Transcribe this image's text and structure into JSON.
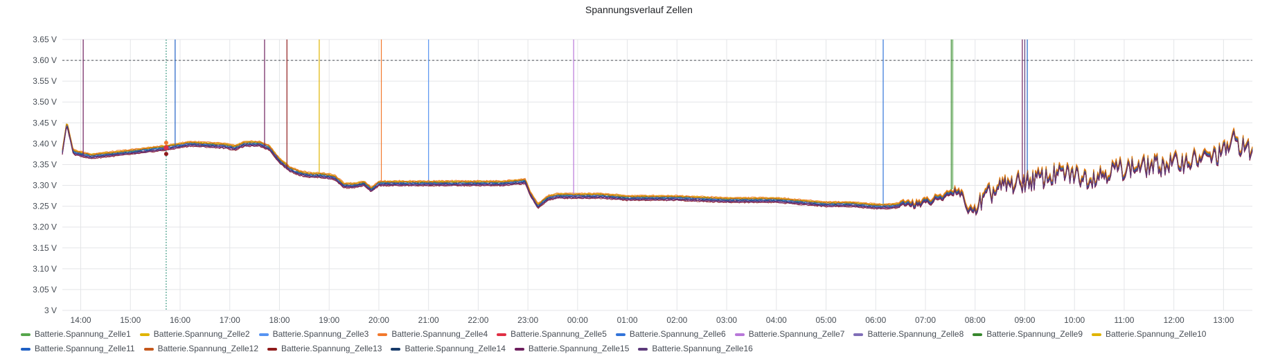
{
  "chart_data": {
    "type": "line",
    "title": "Spannungsverlauf Zellen",
    "unit": "V",
    "ylim": [
      3.0,
      3.65
    ],
    "y_ticks": [
      "3 V",
      "3.05 V",
      "3.10 V",
      "3.15 V",
      "3.20 V",
      "3.25 V",
      "3.30 V",
      "3.35 V",
      "3.40 V",
      "3.45 V",
      "3.50 V",
      "3.55 V",
      "3.60 V",
      "3.65 V"
    ],
    "y_tick_values": [
      3.0,
      3.05,
      3.1,
      3.15,
      3.2,
      3.25,
      3.3,
      3.35,
      3.4,
      3.45,
      3.5,
      3.55,
      3.6,
      3.65
    ],
    "x_range_hours": [
      13.63,
      37.58
    ],
    "x_ticks": [
      "14:00",
      "15:00",
      "16:00",
      "17:00",
      "18:00",
      "19:00",
      "20:00",
      "21:00",
      "22:00",
      "23:00",
      "00:00",
      "01:00",
      "02:00",
      "03:00",
      "04:00",
      "05:00",
      "06:00",
      "07:00",
      "08:00",
      "09:00",
      "10:00",
      "11:00",
      "12:00",
      "13:00"
    ],
    "x_tick_values": [
      14,
      15,
      16,
      17,
      18,
      19,
      20,
      21,
      22,
      23,
      24,
      25,
      26,
      27,
      28,
      29,
      30,
      31,
      32,
      33,
      34,
      35,
      36,
      37
    ],
    "threshold": {
      "value": 3.6,
      "color": "#4a4f56",
      "style": "dashed"
    },
    "crosshair_x": 15.72,
    "grid": true,
    "legend_position": "bottom",
    "average_profile": {
      "x": [
        13.63,
        13.72,
        13.85,
        14.2,
        15.0,
        15.7,
        16.2,
        16.9,
        17.1,
        17.3,
        17.6,
        17.8,
        18.0,
        18.2,
        18.4,
        18.6,
        18.8,
        19.1,
        19.3,
        19.5,
        19.7,
        19.85,
        20.0,
        20.5,
        21.0,
        21.5,
        22.0,
        22.5,
        22.95,
        23.05,
        23.2,
        23.4,
        23.6,
        24.0,
        24.5,
        25.0,
        26.0,
        27.0,
        28.0,
        28.5,
        29.0,
        29.5,
        30.0,
        30.3,
        30.6,
        31.0,
        31.3,
        31.6,
        31.75,
        31.85,
        32.0,
        32.3,
        32.6,
        33.0,
        33.4,
        33.8,
        34.3,
        34.8,
        35.3,
        35.8,
        36.3,
        36.8,
        37.0,
        37.2,
        37.45,
        37.58
      ],
      "y": [
        3.38,
        3.45,
        3.38,
        3.37,
        3.38,
        3.39,
        3.4,
        3.395,
        3.39,
        3.4,
        3.4,
        3.39,
        3.36,
        3.34,
        3.33,
        3.325,
        3.325,
        3.32,
        3.3,
        3.3,
        3.305,
        3.29,
        3.305,
        3.305,
        3.305,
        3.305,
        3.305,
        3.305,
        3.31,
        3.28,
        3.25,
        3.27,
        3.275,
        3.275,
        3.275,
        3.27,
        3.27,
        3.265,
        3.265,
        3.26,
        3.255,
        3.255,
        3.25,
        3.25,
        3.255,
        3.26,
        3.27,
        3.29,
        3.28,
        3.24,
        3.245,
        3.28,
        3.3,
        3.31,
        3.32,
        3.33,
        3.32,
        3.34,
        3.345,
        3.35,
        3.36,
        3.37,
        3.38,
        3.41,
        3.39,
        3.38
      ]
    },
    "series": [
      {
        "name": "Batterie.Spannung_Zelle1",
        "color": "#56a64b",
        "offset": 0.004,
        "spikes": [
          31.55
        ]
      },
      {
        "name": "Batterie.Spannung_Zelle2",
        "color": "#e0b400",
        "offset": 0.005,
        "spikes": [
          18.8
        ]
      },
      {
        "name": "Batterie.Spannung_Zelle3",
        "color": "#5794f2",
        "offset": 0.002,
        "spikes": [
          21.0
        ]
      },
      {
        "name": "Batterie.Spannung_Zelle4",
        "color": "#f2782c",
        "offset": 0.006,
        "spikes": [
          20.05
        ]
      },
      {
        "name": "Batterie.Spannung_Zelle5",
        "color": "#e02f44",
        "offset": -0.002,
        "spikes": []
      },
      {
        "name": "Batterie.Spannung_Zelle6",
        "color": "#3274d9",
        "offset": 0.0,
        "spikes": [
          30.15
        ]
      },
      {
        "name": "Batterie.Spannung_Zelle7",
        "color": "#b877d9",
        "offset": -0.004,
        "spikes": [
          23.92
        ]
      },
      {
        "name": "Batterie.Spannung_Zelle8",
        "color": "#806eb7",
        "offset": -0.003,
        "spikes": []
      },
      {
        "name": "Batterie.Spannung_Zelle9",
        "color": "#37872d",
        "offset": 0.002,
        "spikes": [
          31.52
        ]
      },
      {
        "name": "Batterie.Spannung_Zelle10",
        "color": "#e0b400",
        "offset": 0.004,
        "spikes": []
      },
      {
        "name": "Batterie.Spannung_Zelle11",
        "color": "#1f60c4",
        "offset": 0.0,
        "spikes": [
          15.9,
          33.05
        ]
      },
      {
        "name": "Batterie.Spannung_Zelle12",
        "color": "#c4581c",
        "offset": 0.003,
        "spikes": []
      },
      {
        "name": "Batterie.Spannung_Zelle13",
        "color": "#8f1b1b",
        "offset": -0.006,
        "spikes": [
          18.15
        ]
      },
      {
        "name": "Batterie.Spannung_Zelle14",
        "color": "#173a6a",
        "offset": -0.002,
        "spikes": []
      },
      {
        "name": "Batterie.Spannung_Zelle15",
        "color": "#6e1f5e",
        "offset": -0.005,
        "spikes": [
          14.05,
          17.7,
          32.95
        ]
      },
      {
        "name": "Batterie.Spannung_Zelle16",
        "color": "#5c3a7a",
        "offset": -0.003,
        "spikes": [
          33.0
        ]
      }
    ]
  }
}
